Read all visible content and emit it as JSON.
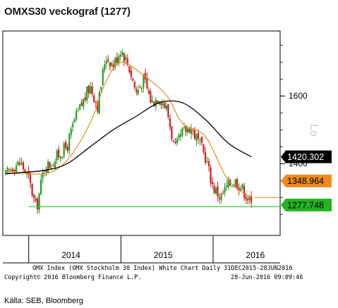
{
  "title": "OMXS30 veckograf (1277)",
  "source": "Källa: SEB, Bloomberg",
  "footer": {
    "line1": "OMX Index (OMX Stockholm 30 Index) White Chart  Daily 31DEC2015-28JUN2016",
    "line2_left": "Copyright© 2016 Bloomberg Finance L.P.",
    "line2_right": "28-Jun-2016 09:09:46"
  },
  "colors": {
    "up": "#22a022",
    "down": "#cc1f1f",
    "ma_short": "#e88a1a",
    "ma_long": "#000000",
    "support": "#33cc33",
    "tag_black": "#000000",
    "tag_orange": "#f08a1e",
    "tag_green": "#22b422"
  },
  "chart_data": {
    "type": "line",
    "subtype": "candlestick",
    "title": "OMXS30 veckograf (1277)",
    "x_axis": {
      "labels": [
        "2014",
        "2015",
        "2016"
      ],
      "range": [
        "2013-10",
        "2016-06"
      ]
    },
    "y_axis": {
      "position": "right",
      "ticks": [
        1400,
        1600
      ],
      "ylim": [
        1190,
        1790
      ]
    },
    "series": [
      {
        "kind": "price",
        "x": [
          "2013-10",
          "2013-11",
          "2013-12",
          "2014-01",
          "2014-02",
          "2014-03",
          "2014-04",
          "2014-05",
          "2014-06",
          "2014-07",
          "2014-08",
          "2014-09",
          "2014-10",
          "2014-11",
          "2014-12",
          "2015-01",
          "2015-02",
          "2015-03",
          "2015-04",
          "2015-05",
          "2015-06",
          "2015-07",
          "2015-08",
          "2015-09",
          "2015-10",
          "2015-11",
          "2015-12",
          "2016-01",
          "2016-02",
          "2016-03",
          "2016-04",
          "2016-05",
          "2016-06"
        ],
        "values": [
          1365,
          1395,
          1402,
          1355,
          1265,
          1390,
          1400,
          1430,
          1450,
          1530,
          1580,
          1630,
          1570,
          1720,
          1690,
          1740,
          1690,
          1610,
          1650,
          1580,
          1600,
          1560,
          1440,
          1490,
          1510,
          1470,
          1420,
          1330,
          1300,
          1340,
          1350,
          1320,
          1277
        ]
      },
      {
        "kind": "moving_average_short",
        "x": [
          "2013-10",
          "2014-03",
          "2014-06",
          "2014-09",
          "2014-11",
          "2015-01",
          "2015-04",
          "2015-07",
          "2015-09",
          "2015-12",
          "2016-03",
          "2016-06"
        ],
        "values": [
          1380,
          1370,
          1410,
          1520,
          1640,
          1700,
          1660,
          1600,
          1520,
          1480,
          1350,
          1300
        ]
      },
      {
        "kind": "moving_average_long",
        "x": [
          "2013-10",
          "2014-03",
          "2014-06",
          "2014-09",
          "2014-12",
          "2015-03",
          "2015-06",
          "2015-09",
          "2015-12",
          "2016-03",
          "2016-06"
        ],
        "values": [
          1370,
          1380,
          1400,
          1450,
          1500,
          1540,
          1580,
          1580,
          1530,
          1460,
          1420
        ]
      }
    ],
    "support_line": 1273,
    "price_tags": [
      "1420.302",
      "1348.964",
      "1277.748"
    ]
  }
}
